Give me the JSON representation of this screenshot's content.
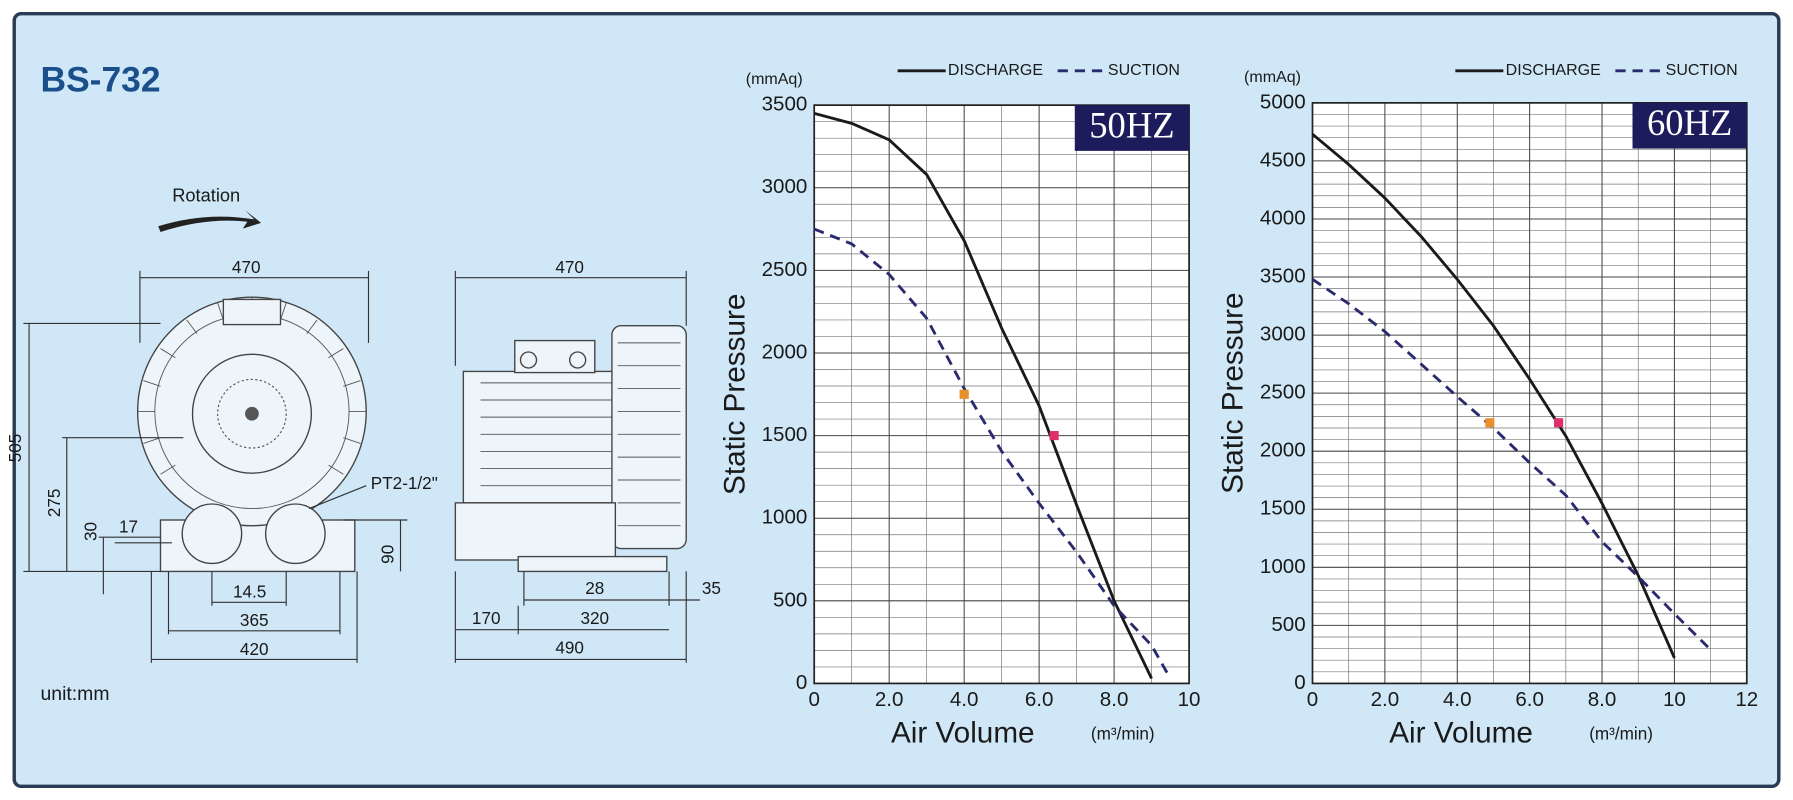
{
  "header": {
    "title": "BS-732"
  },
  "drawing": {
    "rotation": "Rotation",
    "port": "PT2-1/2\"",
    "unit": "unit:mm",
    "front_dimensions": [
      "470",
      "505",
      "275",
      "30",
      "17",
      "14.5",
      "365",
      "420",
      "90"
    ],
    "side_dimensions": [
      "470",
      "28",
      "35",
      "170",
      "320",
      "490"
    ]
  },
  "chart_data": [
    {
      "type": "line",
      "annotation": "50HZ",
      "x_label": "Air Volume",
      "x_unit": "(m³/min)",
      "y_label": "Static Pressure",
      "y_unit": "(mmAq)",
      "x": [
        0,
        1,
        2,
        3,
        4,
        5,
        6,
        7,
        8,
        9,
        9.5
      ],
      "series": [
        {
          "name": "DISCHARGE",
          "color": "#1a1a1a",
          "linestyle": "solid",
          "values": [
            3450,
            3390,
            3290,
            3080,
            2680,
            2150,
            1680,
            1080,
            500,
            30,
            null
          ]
        },
        {
          "name": "SUCTION",
          "color": "#2a2a6e",
          "linestyle": "dashed",
          "values": [
            2750,
            2660,
            2475,
            2210,
            1785,
            1405,
            1090,
            795,
            470,
            230,
            30
          ]
        }
      ],
      "markers": [
        {
          "x": 4,
          "y": 1750,
          "color": "#e8902a"
        },
        {
          "x": 6.4,
          "y": 1500,
          "color": "#e0306a"
        }
      ],
      "xlim": [
        0,
        10
      ],
      "xticks": [
        0,
        {
          "value": 2,
          "label": "2.0"
        },
        {
          "value": 4,
          "label": "4.0"
        },
        {
          "value": 6,
          "label": "6.0"
        },
        {
          "value": 8,
          "label": "8.0"
        },
        10
      ],
      "ylim": [
        0,
        3500
      ],
      "yticks": [
        0,
        500,
        1000,
        1500,
        2000,
        2500,
        3000,
        3500
      ],
      "grid": true
    },
    {
      "type": "line",
      "annotation": "60HZ",
      "x_label": "Air Volume",
      "x_unit": "(m³/min)",
      "y_label": "Static Pressure",
      "y_unit": "(mmAq)",
      "x": [
        0,
        1,
        2,
        3,
        4,
        5,
        6,
        7,
        8,
        9,
        10,
        11
      ],
      "series": [
        {
          "name": "DISCHARGE",
          "color": "#1a1a1a",
          "linestyle": "solid",
          "values": [
            4730,
            4470,
            4180,
            3850,
            3480,
            3080,
            2620,
            2130,
            1550,
            930,
            220,
            null
          ]
        },
        {
          "name": "SUCTION",
          "color": "#2a2a6e",
          "linestyle": "dashed",
          "values": [
            3480,
            3270,
            3030,
            2750,
            2470,
            2200,
            1900,
            1620,
            1220,
            920,
            600,
            290
          ]
        }
      ],
      "markers": [
        {
          "x": 4.9,
          "y": 2245,
          "color": "#e8902a"
        },
        {
          "x": 6.8,
          "y": 2245,
          "color": "#e0306a"
        }
      ],
      "xlim": [
        0,
        12
      ],
      "xticks": [
        0,
        {
          "value": 2,
          "label": "2.0"
        },
        {
          "value": 4,
          "label": "4.0"
        },
        {
          "value": 6,
          "label": "6.0"
        },
        {
          "value": 8,
          "label": "8.0"
        },
        10,
        12
      ],
      "ylim": [
        0,
        5000
      ],
      "yticks": [
        0,
        500,
        1000,
        1500,
        2000,
        2500,
        3000,
        3500,
        4000,
        4500,
        5000
      ],
      "grid": true
    }
  ]
}
